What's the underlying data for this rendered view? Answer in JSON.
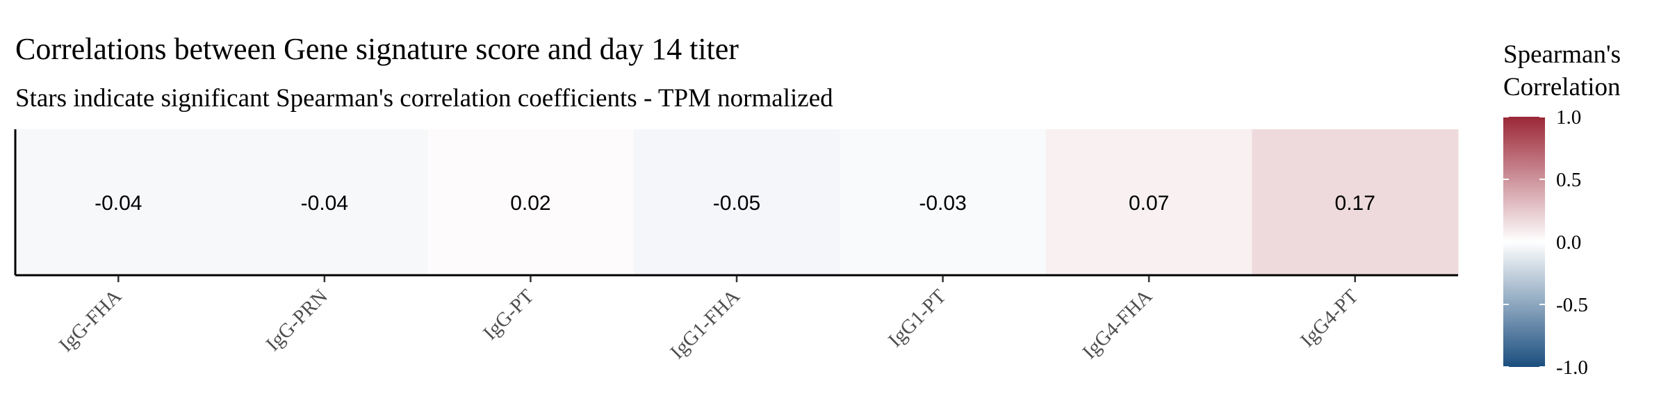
{
  "chart_data": {
    "type": "heatmap",
    "title": "Correlations between Gene signature score and day 14 titer",
    "subtitle": "Stars indicate significant Spearman's correlation coefficients - TPM normalized",
    "categories": [
      "IgG-FHA",
      "IgG-PRN",
      "IgG-PT",
      "IgG1-FHA",
      "IgG1-PT",
      "IgG4-FHA",
      "IgG4-PT"
    ],
    "values": [
      -0.04,
      -0.04,
      0.02,
      -0.05,
      -0.03,
      0.07,
      0.17
    ],
    "value_labels": [
      "-0.04",
      "-0.04",
      "0.02",
      "-0.05",
      "-0.03",
      "0.07",
      "0.17"
    ],
    "legend": {
      "title_line1": "Spearman's",
      "title_line2": "Correlation",
      "ticks": [
        "1.0",
        "0.5",
        "0.0",
        "-0.5",
        "-1.0"
      ],
      "range": [
        -1,
        1
      ],
      "colors": {
        "low": "#1a4e7e",
        "mid": "#ffffff",
        "high": "#9b2737"
      },
      "placement": "right"
    }
  }
}
